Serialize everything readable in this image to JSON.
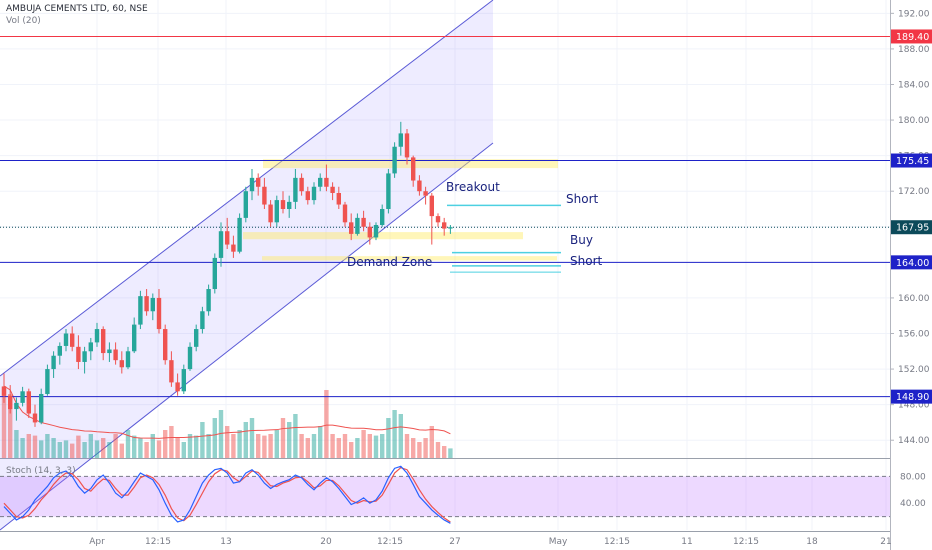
{
  "header": {
    "symbol_title": "AMBUJA CEMENTS LTD, 60, NSE",
    "volume_label": "Vol (20)",
    "stoch_label": "Stoch (14, 3, 3)"
  },
  "chart_data": {
    "type": "candlestick",
    "price_axis": {
      "ylim": [
        142,
        193.5
      ],
      "ticks": [
        144,
        148,
        152,
        156,
        160,
        164,
        168,
        172,
        176,
        180,
        184,
        188,
        192
      ]
    },
    "stoch_axis": {
      "ylim": [
        0,
        100
      ],
      "ticks": [
        40,
        80
      ],
      "bands": [
        20,
        80
      ]
    },
    "time_axis_labels": [
      "Apr",
      "12:15",
      "13",
      "20",
      "12:15",
      "27",
      "May",
      "12:15",
      "11",
      "12:15",
      "18",
      "21"
    ],
    "horizontal_levels": [
      {
        "value": 189.4,
        "label": "189.40",
        "color": "#f23645"
      },
      {
        "value": 175.45,
        "label": "175.45",
        "color": "#1e22c8"
      },
      {
        "value": 164.0,
        "label": "164.00",
        "color": "#1e22c8"
      },
      {
        "value": 148.9,
        "label": "148.90",
        "color": "#1e22c8"
      }
    ],
    "last_price": {
      "value": 167.95,
      "label": "167.95",
      "color": "#0c4a5a"
    },
    "annotations": [
      {
        "text": "Breakout",
        "price": 172.3
      },
      {
        "text": "Short",
        "price": 170.4
      },
      {
        "text": "Buy",
        "price": 165.1
      },
      {
        "text": "Demand Zone",
        "price": 162.8
      },
      {
        "text": "Short",
        "price": 162.8
      }
    ],
    "ohlc": [
      [
        150.0,
        151.5,
        148.2,
        149.0
      ],
      [
        149.0,
        150.2,
        147.0,
        147.5
      ],
      [
        147.5,
        148.8,
        146.2,
        148.2
      ],
      [
        148.2,
        150.0,
        147.8,
        149.5
      ],
      [
        149.5,
        149.8,
        146.5,
        147.0
      ],
      [
        147.0,
        148.0,
        145.5,
        146.0
      ],
      [
        146.0,
        149.8,
        145.8,
        149.2
      ],
      [
        149.2,
        152.5,
        149.0,
        152.0
      ],
      [
        152.0,
        154.0,
        151.0,
        153.5
      ],
      [
        153.5,
        155.0,
        152.5,
        154.6
      ],
      [
        154.6,
        156.5,
        154.0,
        156.0
      ],
      [
        156.0,
        156.8,
        154.0,
        154.5
      ],
      [
        154.5,
        155.8,
        152.0,
        152.8
      ],
      [
        152.8,
        154.5,
        151.5,
        154.0
      ],
      [
        154.0,
        155.5,
        153.0,
        155.0
      ],
      [
        155.0,
        157.2,
        154.5,
        156.5
      ],
      [
        156.5,
        156.8,
        153.0,
        153.8
      ],
      [
        153.8,
        155.0,
        152.8,
        154.2
      ],
      [
        154.2,
        155.0,
        152.5,
        153.0
      ],
      [
        153.0,
        154.0,
        151.5,
        152.2
      ],
      [
        152.2,
        154.5,
        152.0,
        154.0
      ],
      [
        154.0,
        157.8,
        153.8,
        157.0
      ],
      [
        157.0,
        160.8,
        156.5,
        160.2
      ],
      [
        160.2,
        161.0,
        158.0,
        158.5
      ],
      [
        158.5,
        160.5,
        157.5,
        160.0
      ],
      [
        160.0,
        161.0,
        156.0,
        156.5
      ],
      [
        156.5,
        157.0,
        152.5,
        153.0
      ],
      [
        153.0,
        154.0,
        150.0,
        150.5
      ],
      [
        150.5,
        151.5,
        149.0,
        149.5
      ],
      [
        149.5,
        152.5,
        149.2,
        152.0
      ],
      [
        152.0,
        155.0,
        151.8,
        154.5
      ],
      [
        154.5,
        157.0,
        154.0,
        156.5
      ],
      [
        156.5,
        159.0,
        156.0,
        158.5
      ],
      [
        158.5,
        161.5,
        158.0,
        161.0
      ],
      [
        161.0,
        165.0,
        160.5,
        164.5
      ],
      [
        164.5,
        168.5,
        163.5,
        167.5
      ],
      [
        167.5,
        169.0,
        165.5,
        166.0
      ],
      [
        166.0,
        167.0,
        164.5,
        165.2
      ],
      [
        165.2,
        169.5,
        165.0,
        169.0
      ],
      [
        169.0,
        172.5,
        168.5,
        172.0
      ],
      [
        172.0,
        174.5,
        171.0,
        173.5
      ],
      [
        173.5,
        174.0,
        171.5,
        172.5
      ],
      [
        172.5,
        173.5,
        170.0,
        170.5
      ],
      [
        170.5,
        171.0,
        168.0,
        168.5
      ],
      [
        168.5,
        171.5,
        168.0,
        171.0
      ],
      [
        171.0,
        172.0,
        169.5,
        170.0
      ],
      [
        170.0,
        171.5,
        169.0,
        170.8
      ],
      [
        170.8,
        174.5,
        170.0,
        173.5
      ],
      [
        173.5,
        174.0,
        171.5,
        172.0
      ],
      [
        172.0,
        172.5,
        170.5,
        171.0
      ],
      [
        171.0,
        173.0,
        170.5,
        172.5
      ],
      [
        172.5,
        174.0,
        172.0,
        173.5
      ],
      [
        173.5,
        175.0,
        172.0,
        172.5
      ],
      [
        172.5,
        173.0,
        171.0,
        171.8
      ],
      [
        171.8,
        172.5,
        170.0,
        170.5
      ],
      [
        170.5,
        170.8,
        168.0,
        168.5
      ],
      [
        168.5,
        169.5,
        166.5,
        167.2
      ],
      [
        167.2,
        169.5,
        167.0,
        169.0
      ],
      [
        169.0,
        169.8,
        167.5,
        168.0
      ],
      [
        168.0,
        168.5,
        166.0,
        166.8
      ],
      [
        166.8,
        168.5,
        166.5,
        168.2
      ],
      [
        168.2,
        170.5,
        168.0,
        170.0
      ],
      [
        170.0,
        174.5,
        169.5,
        174.0
      ],
      [
        174.0,
        177.5,
        173.5,
        177.0
      ],
      [
        177.0,
        179.8,
        176.0,
        178.5
      ],
      [
        178.5,
        179.0,
        175.0,
        175.8
      ],
      [
        175.8,
        176.0,
        172.5,
        173.2
      ],
      [
        173.2,
        173.8,
        171.5,
        172.0
      ],
      [
        172.0,
        172.5,
        170.5,
        171.5
      ],
      [
        171.5,
        171.8,
        166.0,
        169.2
      ],
      [
        169.2,
        169.5,
        168.0,
        168.5
      ],
      [
        168.5,
        169.0,
        167.0,
        167.8
      ],
      [
        167.8,
        168.2,
        167.2,
        167.95
      ]
    ],
    "volume": [
      0.9,
      0.8,
      0.35,
      0.25,
      0.3,
      0.28,
      0.22,
      0.3,
      0.25,
      0.2,
      0.22,
      0.18,
      0.28,
      0.2,
      0.3,
      0.22,
      0.25,
      0.2,
      0.3,
      0.18,
      0.35,
      0.28,
      0.25,
      0.2,
      0.3,
      0.22,
      0.35,
      0.4,
      0.25,
      0.2,
      0.3,
      0.28,
      0.45,
      0.3,
      0.5,
      0.6,
      0.4,
      0.3,
      0.35,
      0.45,
      0.5,
      0.3,
      0.28,
      0.3,
      0.35,
      0.5,
      0.45,
      0.55,
      0.3,
      0.25,
      0.3,
      0.4,
      0.85,
      0.3,
      0.25,
      0.3,
      0.2,
      0.25,
      0.35,
      0.3,
      0.28,
      0.3,
      0.5,
      0.6,
      0.55,
      0.3,
      0.25,
      0.2,
      0.25,
      0.4,
      0.2,
      0.15,
      0.12
    ],
    "stoch_k": [
      35,
      25,
      15,
      20,
      30,
      45,
      55,
      65,
      78,
      85,
      88,
      80,
      65,
      55,
      62,
      75,
      82,
      70,
      55,
      48,
      58,
      72,
      85,
      80,
      75,
      60,
      40,
      22,
      12,
      15,
      30,
      50,
      70,
      82,
      90,
      92,
      85,
      70,
      72,
      85,
      90,
      82,
      70,
      62,
      68,
      72,
      75,
      82,
      78,
      68,
      60,
      70,
      78,
      72,
      62,
      50,
      38,
      42,
      48,
      40,
      45,
      58,
      78,
      92,
      95,
      85,
      68,
      50,
      40,
      30,
      22,
      15,
      10
    ],
    "stoch_d": [
      40,
      30,
      20,
      18,
      22,
      32,
      45,
      55,
      68,
      78,
      85,
      84,
      75,
      62,
      58,
      68,
      76,
      74,
      62,
      52,
      52,
      64,
      78,
      82,
      78,
      68,
      52,
      32,
      18,
      14,
      22,
      38,
      55,
      72,
      84,
      90,
      88,
      78,
      72,
      80,
      88,
      86,
      76,
      66,
      65,
      70,
      73,
      78,
      79,
      72,
      63,
      66,
      74,
      74,
      66,
      55,
      44,
      40,
      44,
      42,
      43,
      52,
      68,
      85,
      93,
      90,
      76,
      60,
      46,
      35,
      26,
      18,
      12
    ]
  }
}
